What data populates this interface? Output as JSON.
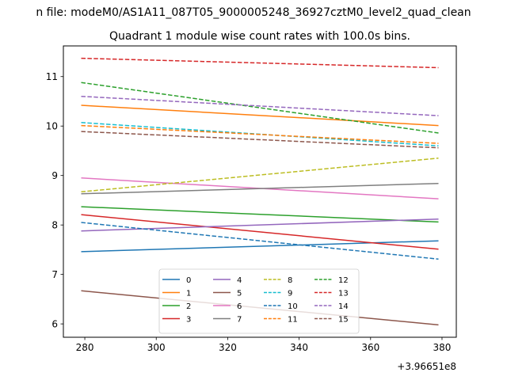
{
  "figure": {
    "suptitle": "n file: modeM0/AS1A11_087T05_9000005248_36927cztM0_level2_quad_clean",
    "axes_title": "Quadrant 1 module wise count rates with 100.0s bins.",
    "offset_text": "+3.96651e8"
  },
  "chart_data": {
    "type": "line",
    "title": "Quadrant 1 module wise count rates with 100.0s bins.",
    "xlabel": "",
    "ylabel": "",
    "x_offset": "+3.96651e8",
    "xlim": [
      274,
      384
    ],
    "ylim": [
      5.73,
      11.62
    ],
    "xticks": [
      280,
      300,
      320,
      340,
      360,
      380
    ],
    "yticks": [
      6,
      7,
      8,
      9,
      10,
      11
    ],
    "grid": false,
    "legend": {
      "placement": "lower center",
      "columns": 4
    },
    "x": [
      279,
      379
    ],
    "series": [
      {
        "name": "0",
        "values": [
          7.46,
          7.68
        ],
        "color": "#1f77b4",
        "dash": "solid"
      },
      {
        "name": "1",
        "values": [
          10.42,
          10.01
        ],
        "color": "#ff7f0e",
        "dash": "solid"
      },
      {
        "name": "2",
        "values": [
          8.37,
          8.06
        ],
        "color": "#2ca02c",
        "dash": "solid"
      },
      {
        "name": "3",
        "values": [
          8.21,
          7.51
        ],
        "color": "#d62728",
        "dash": "solid"
      },
      {
        "name": "4",
        "values": [
          7.88,
          8.12
        ],
        "color": "#9467bd",
        "dash": "solid"
      },
      {
        "name": "5",
        "values": [
          6.67,
          5.98
        ],
        "color": "#8c564b",
        "dash": "solid"
      },
      {
        "name": "6",
        "values": [
          8.95,
          8.53
        ],
        "color": "#e377c2",
        "dash": "solid"
      },
      {
        "name": "7",
        "values": [
          8.63,
          8.84
        ],
        "color": "#7f7f7f",
        "dash": "solid"
      },
      {
        "name": "8",
        "values": [
          8.67,
          9.35
        ],
        "color": "#bcbd22",
        "dash": "dashed"
      },
      {
        "name": "9",
        "values": [
          10.07,
          9.6
        ],
        "color": "#17becf",
        "dash": "dashed"
      },
      {
        "name": "10",
        "values": [
          8.05,
          7.31
        ],
        "color": "#1f77b4",
        "dash": "dashed"
      },
      {
        "name": "11",
        "values": [
          10.01,
          9.65
        ],
        "color": "#ff7f0e",
        "dash": "dashed"
      },
      {
        "name": "12",
        "values": [
          10.88,
          9.86
        ],
        "color": "#2ca02c",
        "dash": "dashed"
      },
      {
        "name": "13",
        "values": [
          11.37,
          11.18
        ],
        "color": "#d62728",
        "dash": "dashed"
      },
      {
        "name": "14",
        "values": [
          10.6,
          10.21
        ],
        "color": "#9467bd",
        "dash": "dashed"
      },
      {
        "name": "15",
        "values": [
          9.89,
          9.56
        ],
        "color": "#8c564b",
        "dash": "dashed"
      }
    ]
  }
}
